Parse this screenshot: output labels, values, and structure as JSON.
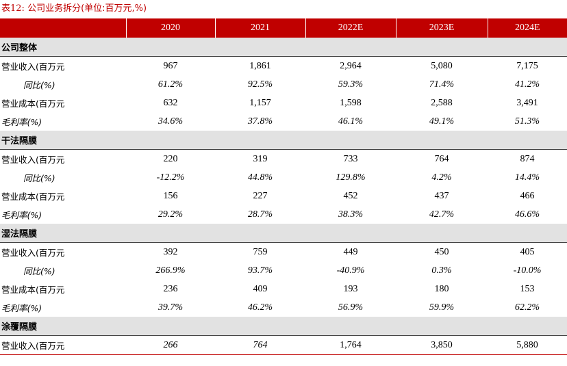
{
  "caption": {
    "prefix": "表12:",
    "title": "公司业务拆分(单位:百万元,%)"
  },
  "columns": [
    "2020",
    "2021",
    "2022E",
    "2023E",
    "2024E"
  ],
  "sections": [
    {
      "name": "公司整体",
      "rows": [
        {
          "label": "营业收入(百万元",
          "style": "normal",
          "values": [
            "967",
            "1,861",
            "2,964",
            "5,080",
            "7,175"
          ]
        },
        {
          "label": "同比(%)",
          "style": "indent-italic",
          "values": [
            "61.2%",
            "92.5%",
            "59.3%",
            "71.4%",
            "41.2%"
          ]
        },
        {
          "label": "营业成本(百万元",
          "style": "normal",
          "values": [
            "632",
            "1,157",
            "1,598",
            "2,588",
            "3,491"
          ]
        },
        {
          "label": "毛利率(%)",
          "style": "italic",
          "values": [
            "34.6%",
            "37.8%",
            "46.1%",
            "49.1%",
            "51.3%"
          ]
        }
      ]
    },
    {
      "name": "干法隔膜",
      "rows": [
        {
          "label": "营业收入(百万元",
          "style": "normal",
          "values": [
            "220",
            "319",
            "733",
            "764",
            "874"
          ]
        },
        {
          "label": "同比(%)",
          "style": "indent-italic",
          "values": [
            "-12.2%",
            "44.8%",
            "129.8%",
            "4.2%",
            "14.4%"
          ]
        },
        {
          "label": "营业成本(百万元",
          "style": "normal",
          "values": [
            "156",
            "227",
            "452",
            "437",
            "466"
          ]
        },
        {
          "label": "毛利率(%)",
          "style": "italic",
          "values": [
            "29.2%",
            "28.7%",
            "38.3%",
            "42.7%",
            "46.6%"
          ]
        }
      ]
    },
    {
      "name": "湿法隔膜",
      "rows": [
        {
          "label": "营业收入(百万元",
          "style": "normal",
          "values": [
            "392",
            "759",
            "449",
            "450",
            "405"
          ]
        },
        {
          "label": "同比(%)",
          "style": "indent-italic",
          "values": [
            "266.9%",
            "93.7%",
            "-40.9%",
            "0.3%",
            "-10.0%"
          ]
        },
        {
          "label": "营业成本(百万元",
          "style": "normal",
          "values": [
            "236",
            "409",
            "193",
            "180",
            "153"
          ]
        },
        {
          "label": "毛利率(%)",
          "style": "italic",
          "values": [
            "39.7%",
            "46.2%",
            "56.9%",
            "59.9%",
            "62.2%"
          ]
        }
      ]
    },
    {
      "name": "涂覆隔膜",
      "rows": [
        {
          "label": "营业收入(百万元",
          "style": "normal",
          "values": [
            "266",
            "764",
            "1,764",
            "3,850",
            "5,880"
          ],
          "italic_values": [
            true,
            true,
            false,
            false,
            false
          ]
        }
      ]
    }
  ]
}
